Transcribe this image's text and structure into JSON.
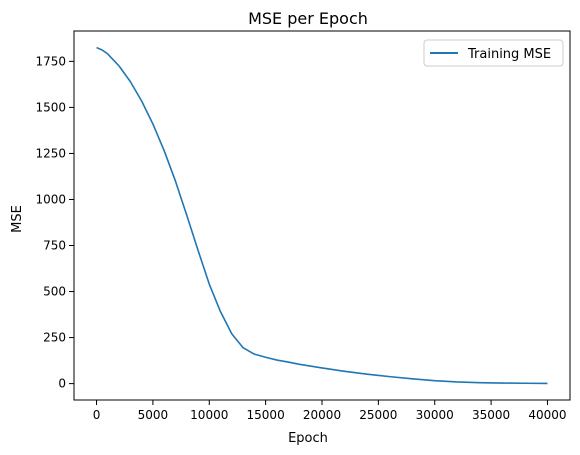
{
  "chart_data": {
    "type": "line",
    "title": "MSE per Epoch",
    "xlabel": "Epoch",
    "ylabel": "MSE",
    "xlim": [
      -1999,
      41999
    ],
    "ylim": [
      -89,
      1915
    ],
    "xticks": [
      0,
      5000,
      10000,
      15000,
      20000,
      25000,
      30000,
      35000,
      40000
    ],
    "yticks": [
      0,
      250,
      500,
      750,
      1000,
      1250,
      1500,
      1750
    ],
    "grid": false,
    "legend_position": "top-right",
    "series": [
      {
        "name": "Training MSE",
        "color": "#1f77b4",
        "x": [
          0,
          500,
          1000,
          2000,
          3000,
          4000,
          5000,
          6000,
          7000,
          8000,
          9000,
          10000,
          11000,
          12000,
          13000,
          14000,
          15000,
          16000,
          17000,
          18000,
          20000,
          22000,
          24000,
          26000,
          28000,
          30000,
          32000,
          34000,
          36000,
          38000,
          40000
        ],
        "y": [
          1825,
          1812,
          1790,
          1725,
          1640,
          1535,
          1410,
          1265,
          1100,
          915,
          725,
          540,
          390,
          270,
          195,
          160,
          143,
          128,
          117,
          105,
          85,
          67,
          51,
          38,
          26,
          16,
          9,
          5,
          3,
          2,
          1
        ]
      }
    ]
  }
}
